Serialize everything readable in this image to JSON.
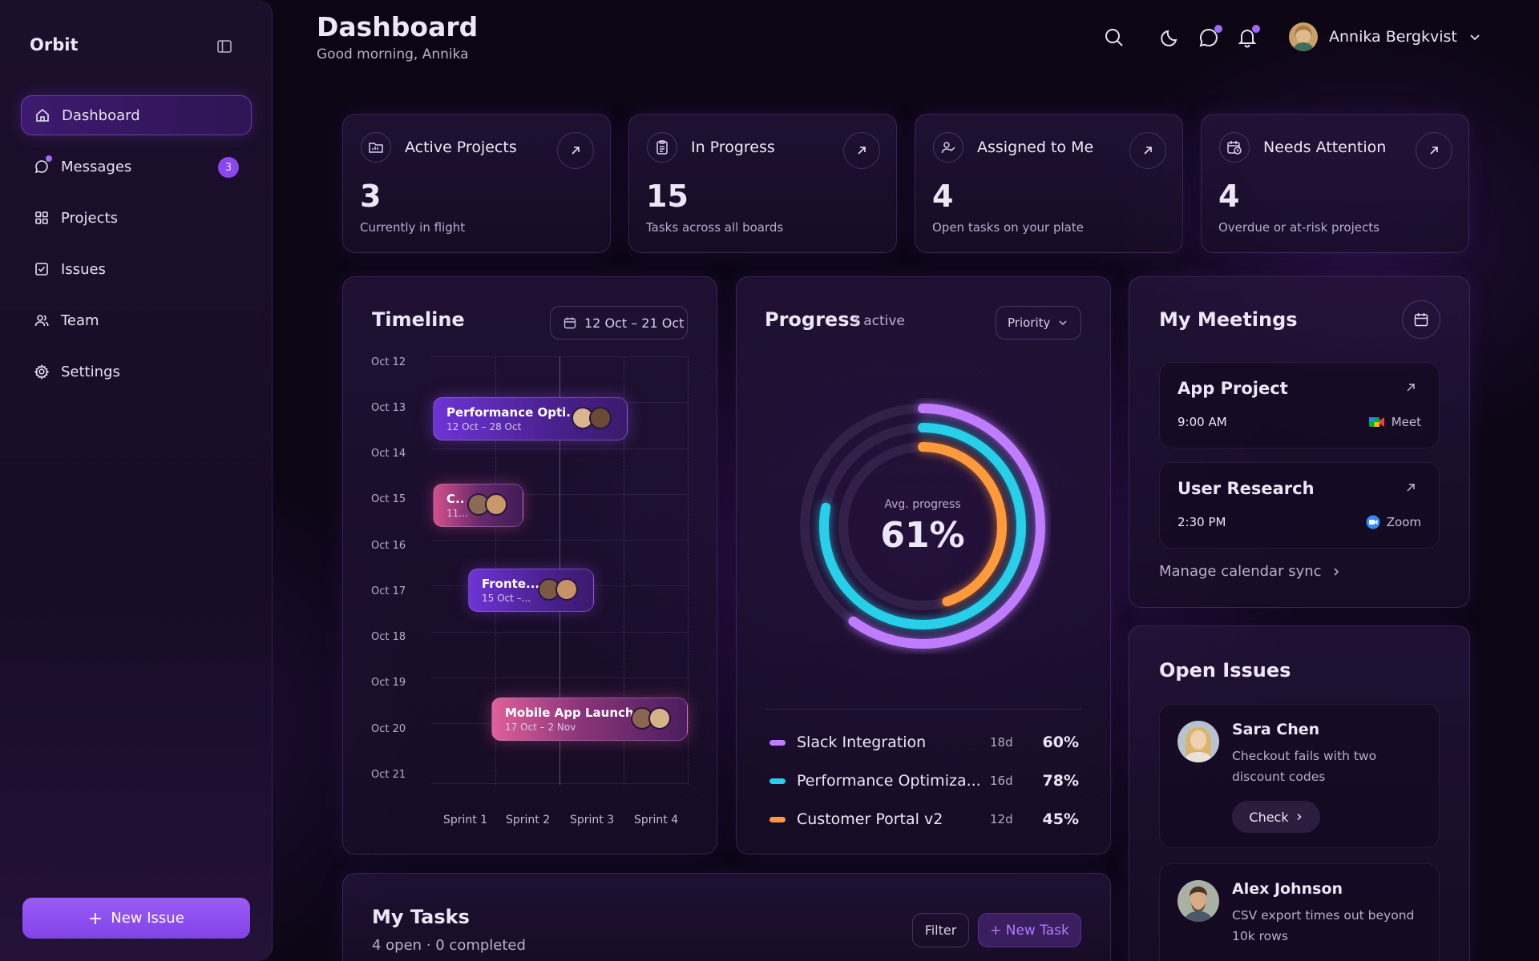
{
  "sidebar": {
    "brand": "Orbit",
    "items": [
      {
        "label": "Dashboard",
        "icon": "home-icon"
      },
      {
        "label": "Messages",
        "icon": "chat-icon",
        "badge": "3"
      },
      {
        "label": "Projects",
        "icon": "grid-icon"
      },
      {
        "label": "Issues",
        "icon": "checkbox-icon"
      },
      {
        "label": "Team",
        "icon": "users-icon"
      },
      {
        "label": "Settings",
        "icon": "gear-icon"
      }
    ],
    "new_issue_label": "New Issue"
  },
  "header": {
    "title": "Dashboard",
    "greeting": "Good morning, Annika",
    "user_name": "Annika Bergkvist"
  },
  "stats": [
    {
      "title": "Active Projects",
      "value": "3",
      "sub": "Currently in flight",
      "icon": "folder-chart-icon"
    },
    {
      "title": "In Progress",
      "value": "15",
      "sub": "Tasks across all boards",
      "icon": "clipboard-icon"
    },
    {
      "title": "Assigned to Me",
      "value": "4",
      "sub": "Open tasks on your plate",
      "icon": "user-check-icon"
    },
    {
      "title": "Needs Attention",
      "value": "4",
      "sub": "Overdue or at-risk projects",
      "icon": "calendar-clock-icon"
    }
  ],
  "timeline": {
    "title": "Timeline",
    "range": "12 Oct – 21 Oct",
    "dates": [
      "Oct 12",
      "Oct 13",
      "Oct 14",
      "Oct 15",
      "Oct 16",
      "Oct 17",
      "Oct 18",
      "Oct 19",
      "Oct 20",
      "Oct 21"
    ],
    "bars": [
      {
        "title": "Performance Opti...",
        "sub": "12 Oct – 28 Oct"
      },
      {
        "title": "C..",
        "sub": "11..."
      },
      {
        "title": "Fronte...",
        "sub": "15 Oct –..."
      },
      {
        "title": "Mobile App Launch",
        "sub": "17 Oct – 2 Nov"
      }
    ],
    "sprints": [
      "Sprint 1",
      "Sprint 2",
      "Sprint 3",
      "Sprint 4"
    ]
  },
  "progress": {
    "title": "Progress",
    "active": "3 active",
    "filter": "Priority",
    "center_label": "Avg. progress",
    "center_value": "61%",
    "items": [
      {
        "name": "Slack Integration",
        "days": "18d",
        "percent": "60%",
        "value": 60,
        "color": "#c07cff"
      },
      {
        "name": "Performance Optimiza...",
        "days": "16d",
        "percent": "78%",
        "value": 78,
        "color": "#27cfe8"
      },
      {
        "name": "Customer Portal v2",
        "days": "12d",
        "percent": "45%",
        "value": 45,
        "color": "#ff9a3c"
      }
    ]
  },
  "meetings": {
    "title": "My Meetings",
    "items": [
      {
        "title": "App Project",
        "time": "9:00 AM",
        "platform": "Meet"
      },
      {
        "title": "User Research",
        "time": "2:30 PM",
        "platform": "Zoom"
      }
    ],
    "manage_link": "Manage calendar sync"
  },
  "issues": {
    "title": "Open Issues",
    "items": [
      {
        "name": "Sara Chen",
        "text": "Checkout fails with two discount codes",
        "action": "Check"
      },
      {
        "name": "Alex Johnson",
        "text": "CSV export times out beyond 10k rows"
      }
    ]
  },
  "tasks": {
    "title": "My Tasks",
    "sub": "4 open · 0 completed",
    "filter_label": "Filter",
    "new_task_label": "+ New Task"
  }
}
